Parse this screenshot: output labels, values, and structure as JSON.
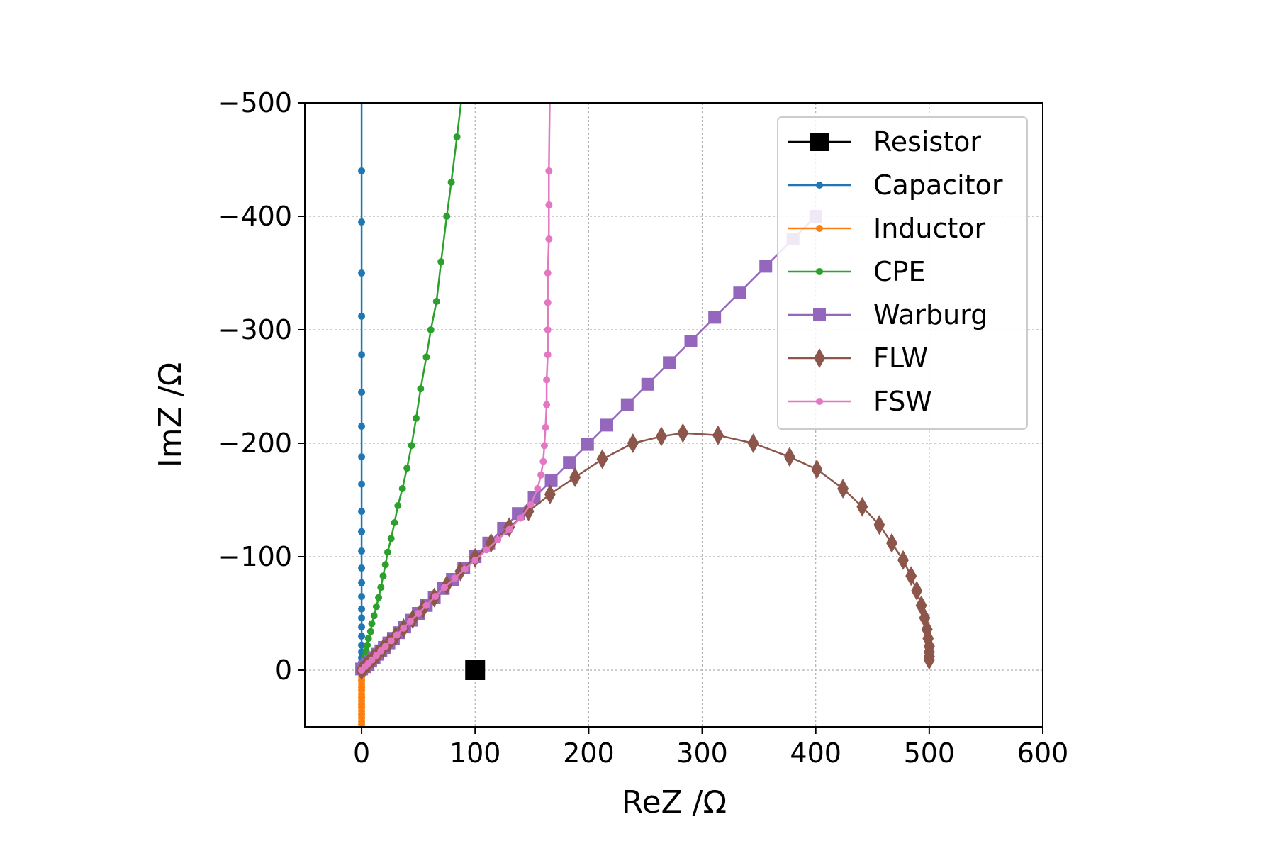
{
  "chart_data": {
    "type": "line",
    "title": "",
    "xlabel": "ReZ /Ω",
    "ylabel": "ImZ /Ω",
    "xlim": [
      -50,
      600
    ],
    "ylim_inverted": [
      50,
      -500
    ],
    "xticks": [
      "0",
      "100",
      "200",
      "300",
      "400",
      "500",
      "600"
    ],
    "yticks": [
      "−500",
      "−400",
      "−300",
      "−200",
      "−100",
      "0"
    ],
    "grid": true,
    "legend_position": "top-right",
    "series": [
      {
        "name": "Resistor",
        "color": "#000000",
        "marker": "square-large",
        "points": [
          [
            100,
            0
          ]
        ]
      },
      {
        "name": "Capacitor",
        "color": "#1f77b4",
        "marker": "dot",
        "points": [
          [
            0,
            -0.5
          ],
          [
            0,
            -2
          ],
          [
            0,
            -4
          ],
          [
            0,
            -7
          ],
          [
            0,
            -11
          ],
          [
            0,
            -16
          ],
          [
            0,
            -22
          ],
          [
            0,
            -30
          ],
          [
            0,
            -38
          ],
          [
            0,
            -46
          ],
          [
            0,
            -54
          ],
          [
            0,
            -65
          ],
          [
            0,
            -77
          ],
          [
            0,
            -90
          ],
          [
            0,
            -105
          ],
          [
            0,
            -122
          ],
          [
            0,
            -140
          ],
          [
            0,
            -164
          ],
          [
            0,
            -188
          ],
          [
            0,
            -215
          ],
          [
            0,
            -245
          ],
          [
            0,
            -278
          ],
          [
            0,
            -312
          ],
          [
            0,
            -350
          ],
          [
            0,
            -395
          ],
          [
            0,
            -440
          ],
          [
            0,
            -520
          ]
        ]
      },
      {
        "name": "Inductor",
        "color": "#ff7f0e",
        "marker": "dot",
        "points": [
          [
            0,
            0
          ],
          [
            0,
            3
          ],
          [
            0,
            6
          ],
          [
            0,
            9
          ],
          [
            0,
            12
          ],
          [
            0,
            15
          ],
          [
            0,
            18
          ],
          [
            0,
            21
          ],
          [
            0,
            24
          ],
          [
            0,
            27
          ],
          [
            0,
            30
          ],
          [
            0,
            33
          ],
          [
            0,
            36
          ],
          [
            0,
            39
          ],
          [
            0,
            42
          ],
          [
            0,
            45
          ],
          [
            0,
            48
          ],
          [
            0,
            60
          ]
        ]
      },
      {
        "name": "CPE",
        "color": "#2ca02c",
        "marker": "dot",
        "points": [
          [
            1,
            -4
          ],
          [
            2,
            -8
          ],
          [
            3,
            -12
          ],
          [
            4,
            -17
          ],
          [
            5,
            -22
          ],
          [
            6,
            -28
          ],
          [
            8,
            -34
          ],
          [
            9,
            -41
          ],
          [
            11,
            -48
          ],
          [
            13,
            -56
          ],
          [
            15,
            -64
          ],
          [
            17,
            -73
          ],
          [
            19,
            -83
          ],
          [
            21,
            -93
          ],
          [
            23,
            -104
          ],
          [
            26,
            -116
          ],
          [
            29,
            -130
          ],
          [
            32,
            -145
          ],
          [
            36,
            -160
          ],
          [
            40,
            -178
          ],
          [
            44,
            -198
          ],
          [
            48,
            -222
          ],
          [
            52,
            -248
          ],
          [
            57,
            -276
          ],
          [
            61,
            -300
          ],
          [
            66,
            -325
          ],
          [
            70,
            -360
          ],
          [
            75,
            -400
          ],
          [
            79,
            -430
          ],
          [
            84,
            -470
          ],
          [
            90,
            -520
          ]
        ]
      },
      {
        "name": "Warburg",
        "color": "#9467bd",
        "marker": "square",
        "points": [
          [
            0,
            -1
          ],
          [
            3,
            -3
          ],
          [
            5,
            -5
          ],
          [
            8,
            -8
          ],
          [
            11,
            -11
          ],
          [
            14,
            -14
          ],
          [
            17,
            -17
          ],
          [
            20,
            -20
          ],
          [
            24,
            -24
          ],
          [
            28,
            -28
          ],
          [
            33,
            -33
          ],
          [
            38,
            -38
          ],
          [
            44,
            -44
          ],
          [
            50,
            -50
          ],
          [
            57,
            -57
          ],
          [
            64,
            -64
          ],
          [
            72,
            -72
          ],
          [
            80,
            -80
          ],
          [
            90,
            -90
          ],
          [
            100,
            -100
          ],
          [
            112,
            -112
          ],
          [
            125,
            -125
          ],
          [
            138,
            -138
          ],
          [
            152,
            -152
          ],
          [
            167,
            -167
          ],
          [
            183,
            -183
          ],
          [
            199,
            -199
          ],
          [
            216,
            -216
          ],
          [
            234,
            -234
          ],
          [
            252,
            -252
          ],
          [
            271,
            -271
          ],
          [
            290,
            -290
          ],
          [
            311,
            -311
          ],
          [
            333,
            -333
          ],
          [
            356,
            -356
          ],
          [
            380,
            -380
          ],
          [
            400,
            -400
          ]
        ]
      },
      {
        "name": "FLW",
        "color": "#8c564b",
        "marker": "diamond",
        "points": [
          [
            0,
            0
          ],
          [
            3,
            -3
          ],
          [
            6,
            -6
          ],
          [
            10,
            -10
          ],
          [
            14,
            -14
          ],
          [
            19,
            -19
          ],
          [
            24,
            -24
          ],
          [
            30,
            -30
          ],
          [
            37,
            -37
          ],
          [
            45,
            -45
          ],
          [
            54,
            -54
          ],
          [
            64,
            -64
          ],
          [
            75,
            -75
          ],
          [
            87,
            -87
          ],
          [
            100,
            -99
          ],
          [
            114,
            -112
          ],
          [
            130,
            -126
          ],
          [
            147,
            -140
          ],
          [
            166,
            -155
          ],
          [
            188,
            -170
          ],
          [
            212,
            -186
          ],
          [
            239,
            -200
          ],
          [
            264,
            -206
          ],
          [
            283,
            -209
          ],
          [
            314,
            -207
          ],
          [
            345,
            -200
          ],
          [
            377,
            -188
          ],
          [
            401,
            -177
          ],
          [
            424,
            -160
          ],
          [
            441,
            -144
          ],
          [
            456,
            -128
          ],
          [
            467,
            -112
          ],
          [
            477,
            -97
          ],
          [
            484,
            -83
          ],
          [
            489,
            -70
          ],
          [
            493,
            -57
          ],
          [
            496,
            -46
          ],
          [
            498,
            -36
          ],
          [
            499,
            -28
          ],
          [
            500,
            -21
          ],
          [
            500,
            -16
          ],
          [
            500,
            -12
          ],
          [
            500,
            -9
          ]
        ]
      },
      {
        "name": "FSW",
        "color": "#e377c2",
        "marker": "dot",
        "points": [
          [
            0,
            0
          ],
          [
            3,
            -3
          ],
          [
            6,
            -6
          ],
          [
            9,
            -9
          ],
          [
            13,
            -13
          ],
          [
            17,
            -17
          ],
          [
            21,
            -21
          ],
          [
            26,
            -26
          ],
          [
            31,
            -31
          ],
          [
            37,
            -37
          ],
          [
            43,
            -43
          ],
          [
            50,
            -50
          ],
          [
            57,
            -57
          ],
          [
            65,
            -65
          ],
          [
            73,
            -73
          ],
          [
            82,
            -81
          ],
          [
            91,
            -89
          ],
          [
            100,
            -97
          ],
          [
            110,
            -106
          ],
          [
            120,
            -115
          ],
          [
            130,
            -124
          ],
          [
            140,
            -134
          ],
          [
            149,
            -146
          ],
          [
            155,
            -160
          ],
          [
            158,
            -172
          ],
          [
            160,
            -184
          ],
          [
            161,
            -198
          ],
          [
            162,
            -214
          ],
          [
            163,
            -234
          ],
          [
            163,
            -256
          ],
          [
            164,
            -278
          ],
          [
            164,
            -300
          ],
          [
            164,
            -324
          ],
          [
            164,
            -350
          ],
          [
            165,
            -380
          ],
          [
            165,
            -410
          ],
          [
            165,
            -440
          ],
          [
            166,
            -520
          ]
        ]
      }
    ]
  }
}
